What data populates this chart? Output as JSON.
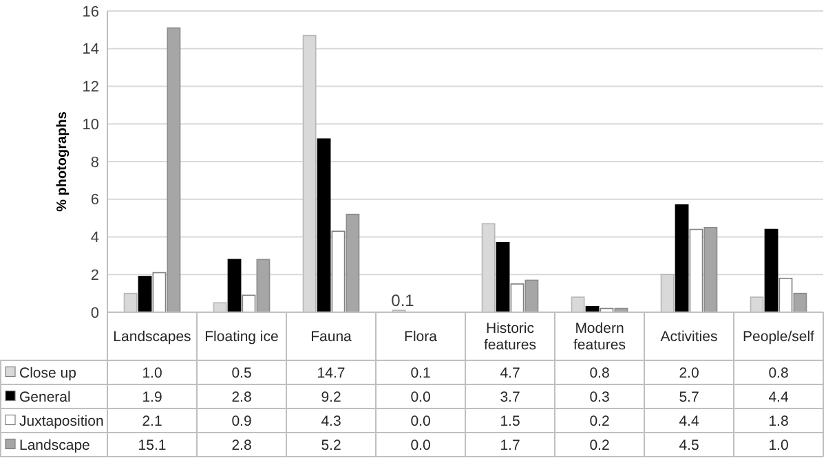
{
  "chart_data": {
    "type": "bar",
    "ylabel": "% photographs",
    "categories": [
      "Landscapes",
      "Floating ice",
      "Fauna",
      "Flora",
      "Historic features",
      "Modern features",
      "Activities",
      "People/self"
    ],
    "series": [
      {
        "name": "Close up",
        "color": "#d9d9d9",
        "values": [
          1.0,
          0.5,
          14.7,
          0.1,
          4.7,
          0.8,
          2.0,
          0.8
        ],
        "value_labels": [
          "1.0",
          "0.5",
          "14.7",
          "0.1",
          "4.7",
          "0.8",
          "2.0",
          "0.8"
        ]
      },
      {
        "name": "General",
        "color": "#000000",
        "values": [
          1.9,
          2.8,
          9.2,
          0.0,
          3.7,
          0.3,
          5.7,
          4.4
        ],
        "value_labels": [
          "1.9",
          "2.8",
          "9.2",
          "0.0",
          "3.7",
          "0.3",
          "5.7",
          "4.4"
        ]
      },
      {
        "name": "Juxtaposition",
        "color": "#ffffff",
        "values": [
          2.1,
          0.9,
          4.3,
          0.0,
          1.5,
          0.2,
          4.4,
          1.8
        ],
        "value_labels": [
          "2.1",
          "0.9",
          "4.3",
          "0.0",
          "1.5",
          "0.2",
          "4.4",
          "1.8"
        ]
      },
      {
        "name": "Landscape",
        "color": "#a6a6a6",
        "values": [
          15.1,
          2.8,
          5.2,
          0.0,
          1.7,
          0.2,
          4.5,
          1.0
        ],
        "value_labels": [
          "15.1",
          "2.8",
          "5.2",
          "0.0",
          "1.7",
          "0.2",
          "4.5",
          "1.0"
        ]
      }
    ],
    "ylim": [
      0,
      16
    ],
    "yticks": [
      0,
      2,
      4,
      6,
      8,
      10,
      12,
      14,
      16
    ],
    "grid": "y",
    "legend": "bottom left",
    "annotations": [
      {
        "text": "0.1",
        "x": "Flora",
        "y": 0.1
      }
    ]
  }
}
